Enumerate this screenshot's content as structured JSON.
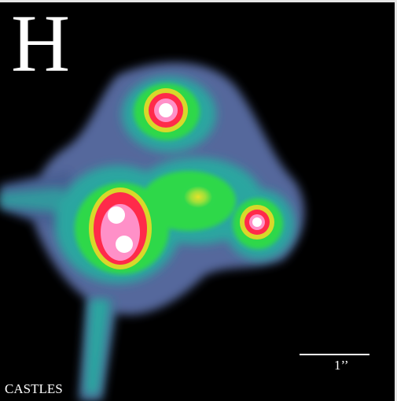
{
  "image": {
    "band_label": "H",
    "scale_label": "1’’",
    "credit": "CASTLES",
    "colors": {
      "background": "#000000",
      "halo": "#5a6aa0",
      "teal": "#2aa6a0",
      "green": "#2fd84a",
      "yellow": "#d8d82a",
      "red": "#ff2a4a",
      "pink": "#ff90c8",
      "core": "#ffffff"
    }
  }
}
